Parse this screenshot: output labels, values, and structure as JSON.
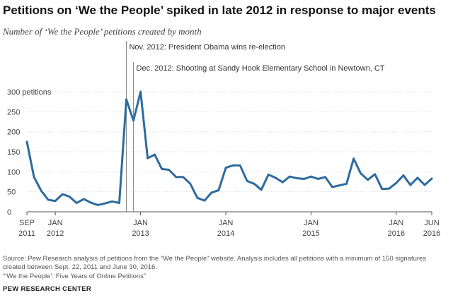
{
  "title": "Petitions on ‘We the People’ spiked in late 2012 in response to major events",
  "subtitle": "Number of ‘We the People’ petitions created by month",
  "source": "Source: Pew Research analysis of petitions from the “We the People” website. Analysis includes all petitions with a minimum of 150 signatures created between Sept. 22, 2011 and June 30, 2016.",
  "note": "“‘We the People’: Five Years of Online Petitions”",
  "brand": "PEW RESEARCH CENTER",
  "colors": {
    "line": "#2e6b9e",
    "annotation": "#888888",
    "grid": "#d9d9d9",
    "axis": "#555555"
  },
  "chart_data": {
    "type": "line",
    "title": "Petitions on ‘We the People’ spiked in late 2012 in response to major events",
    "subtitle": "Number of ‘We the People’ petitions created by month",
    "xlabel": "",
    "ylabel": "",
    "ylim": [
      0,
      300
    ],
    "grid": true,
    "yticks": [
      {
        "value": 0,
        "label": "0"
      },
      {
        "value": 50,
        "label": "50"
      },
      {
        "value": 100,
        "label": "100"
      },
      {
        "value": 150,
        "label": "150"
      },
      {
        "value": 200,
        "label": "200"
      },
      {
        "value": 250,
        "label": "250"
      },
      {
        "value": 300,
        "label": "300 petitions"
      }
    ],
    "xticks": [
      {
        "date": "2011-09",
        "line1": "SEP",
        "line2": "2011"
      },
      {
        "date": "2012-01",
        "line1": "JAN",
        "line2": "2012"
      },
      {
        "date": "2013-01",
        "line1": "JAN",
        "line2": "2013"
      },
      {
        "date": "2014-01",
        "line1": "JAN",
        "line2": "2014"
      },
      {
        "date": "2015-01",
        "line1": "JAN",
        "line2": "2015"
      },
      {
        "date": "2016-01",
        "line1": "JAN",
        "line2": "2016"
      },
      {
        "date": "2016-06",
        "line1": "JUN",
        "line2": "2016"
      }
    ],
    "annotations": [
      {
        "date": "2012-11",
        "text": "Nov. 2012: President Obama wins re-election"
      },
      {
        "date": "2012-12",
        "text": "Dec. 2012: Shooting at Sandy Hook Elementary School in Newtown, CT"
      }
    ],
    "x": [
      "2011-09",
      "2011-10",
      "2011-11",
      "2011-12",
      "2012-01",
      "2012-02",
      "2012-03",
      "2012-04",
      "2012-05",
      "2012-06",
      "2012-07",
      "2012-08",
      "2012-09",
      "2012-10",
      "2012-11",
      "2012-12",
      "2013-01",
      "2013-02",
      "2013-03",
      "2013-04",
      "2013-05",
      "2013-06",
      "2013-07",
      "2013-08",
      "2013-09",
      "2013-10",
      "2013-11",
      "2013-12",
      "2014-01",
      "2014-02",
      "2014-03",
      "2014-04",
      "2014-05",
      "2014-06",
      "2014-07",
      "2014-08",
      "2014-09",
      "2014-10",
      "2014-11",
      "2014-12",
      "2015-01",
      "2015-02",
      "2015-03",
      "2015-04",
      "2015-05",
      "2015-06",
      "2015-07",
      "2015-08",
      "2015-09",
      "2015-10",
      "2015-11",
      "2015-12",
      "2016-01",
      "2016-02",
      "2016-03",
      "2016-04",
      "2016-05",
      "2016-06"
    ],
    "series": [
      {
        "values": [
          175,
          87,
          53,
          30,
          27,
          44,
          38,
          22,
          32,
          23,
          17,
          21,
          26,
          22,
          281,
          228,
          300,
          134,
          143,
          107,
          105,
          87,
          87,
          70,
          35,
          28,
          48,
          54,
          110,
          116,
          116,
          77,
          70,
          55,
          93,
          85,
          74,
          88,
          84,
          82,
          88,
          82,
          87,
          62,
          66,
          70,
          133,
          96,
          80,
          94,
          57,
          58,
          72,
          91,
          67,
          85,
          67,
          83
        ]
      }
    ]
  }
}
